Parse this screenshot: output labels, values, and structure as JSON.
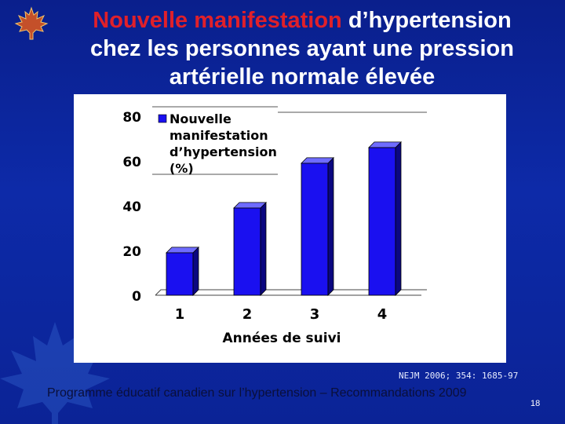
{
  "slide": {
    "title_accent": "Nouvelle manifestation",
    "title_rest_line1": " d’hypertension",
    "title_line2": "chez les personnes ayant une pression",
    "title_line3": "artérielle normale élevée",
    "source": "NEJM 2006; 354: 1685-97",
    "footer": "Programme éducatif canadien sur l’hypertension – Recommandations 2009",
    "page_number": "18"
  },
  "colors": {
    "bar_front": "#1a10f0",
    "bar_side": "#0b0780",
    "bar_top": "#6f6cff",
    "title_accent": "#e0202a"
  },
  "chart_data": {
    "type": "bar",
    "categories": [
      "1",
      "2",
      "3",
      "4"
    ],
    "series": [
      {
        "name": "Nouvelle manifestation d’hypertension (%)",
        "values": [
          19,
          39,
          59,
          66
        ]
      }
    ],
    "legend_lines": [
      "Nouvelle",
      "manifestation",
      "d’hypertension",
      "(%)"
    ],
    "xlabel": "Années de suivi",
    "ylabel": "",
    "ylim": [
      0,
      80
    ],
    "yticks": [
      "0",
      "20",
      "40",
      "60",
      "80"
    ],
    "grid": false,
    "legend_position": "top-left",
    "style": "3d-bar"
  }
}
